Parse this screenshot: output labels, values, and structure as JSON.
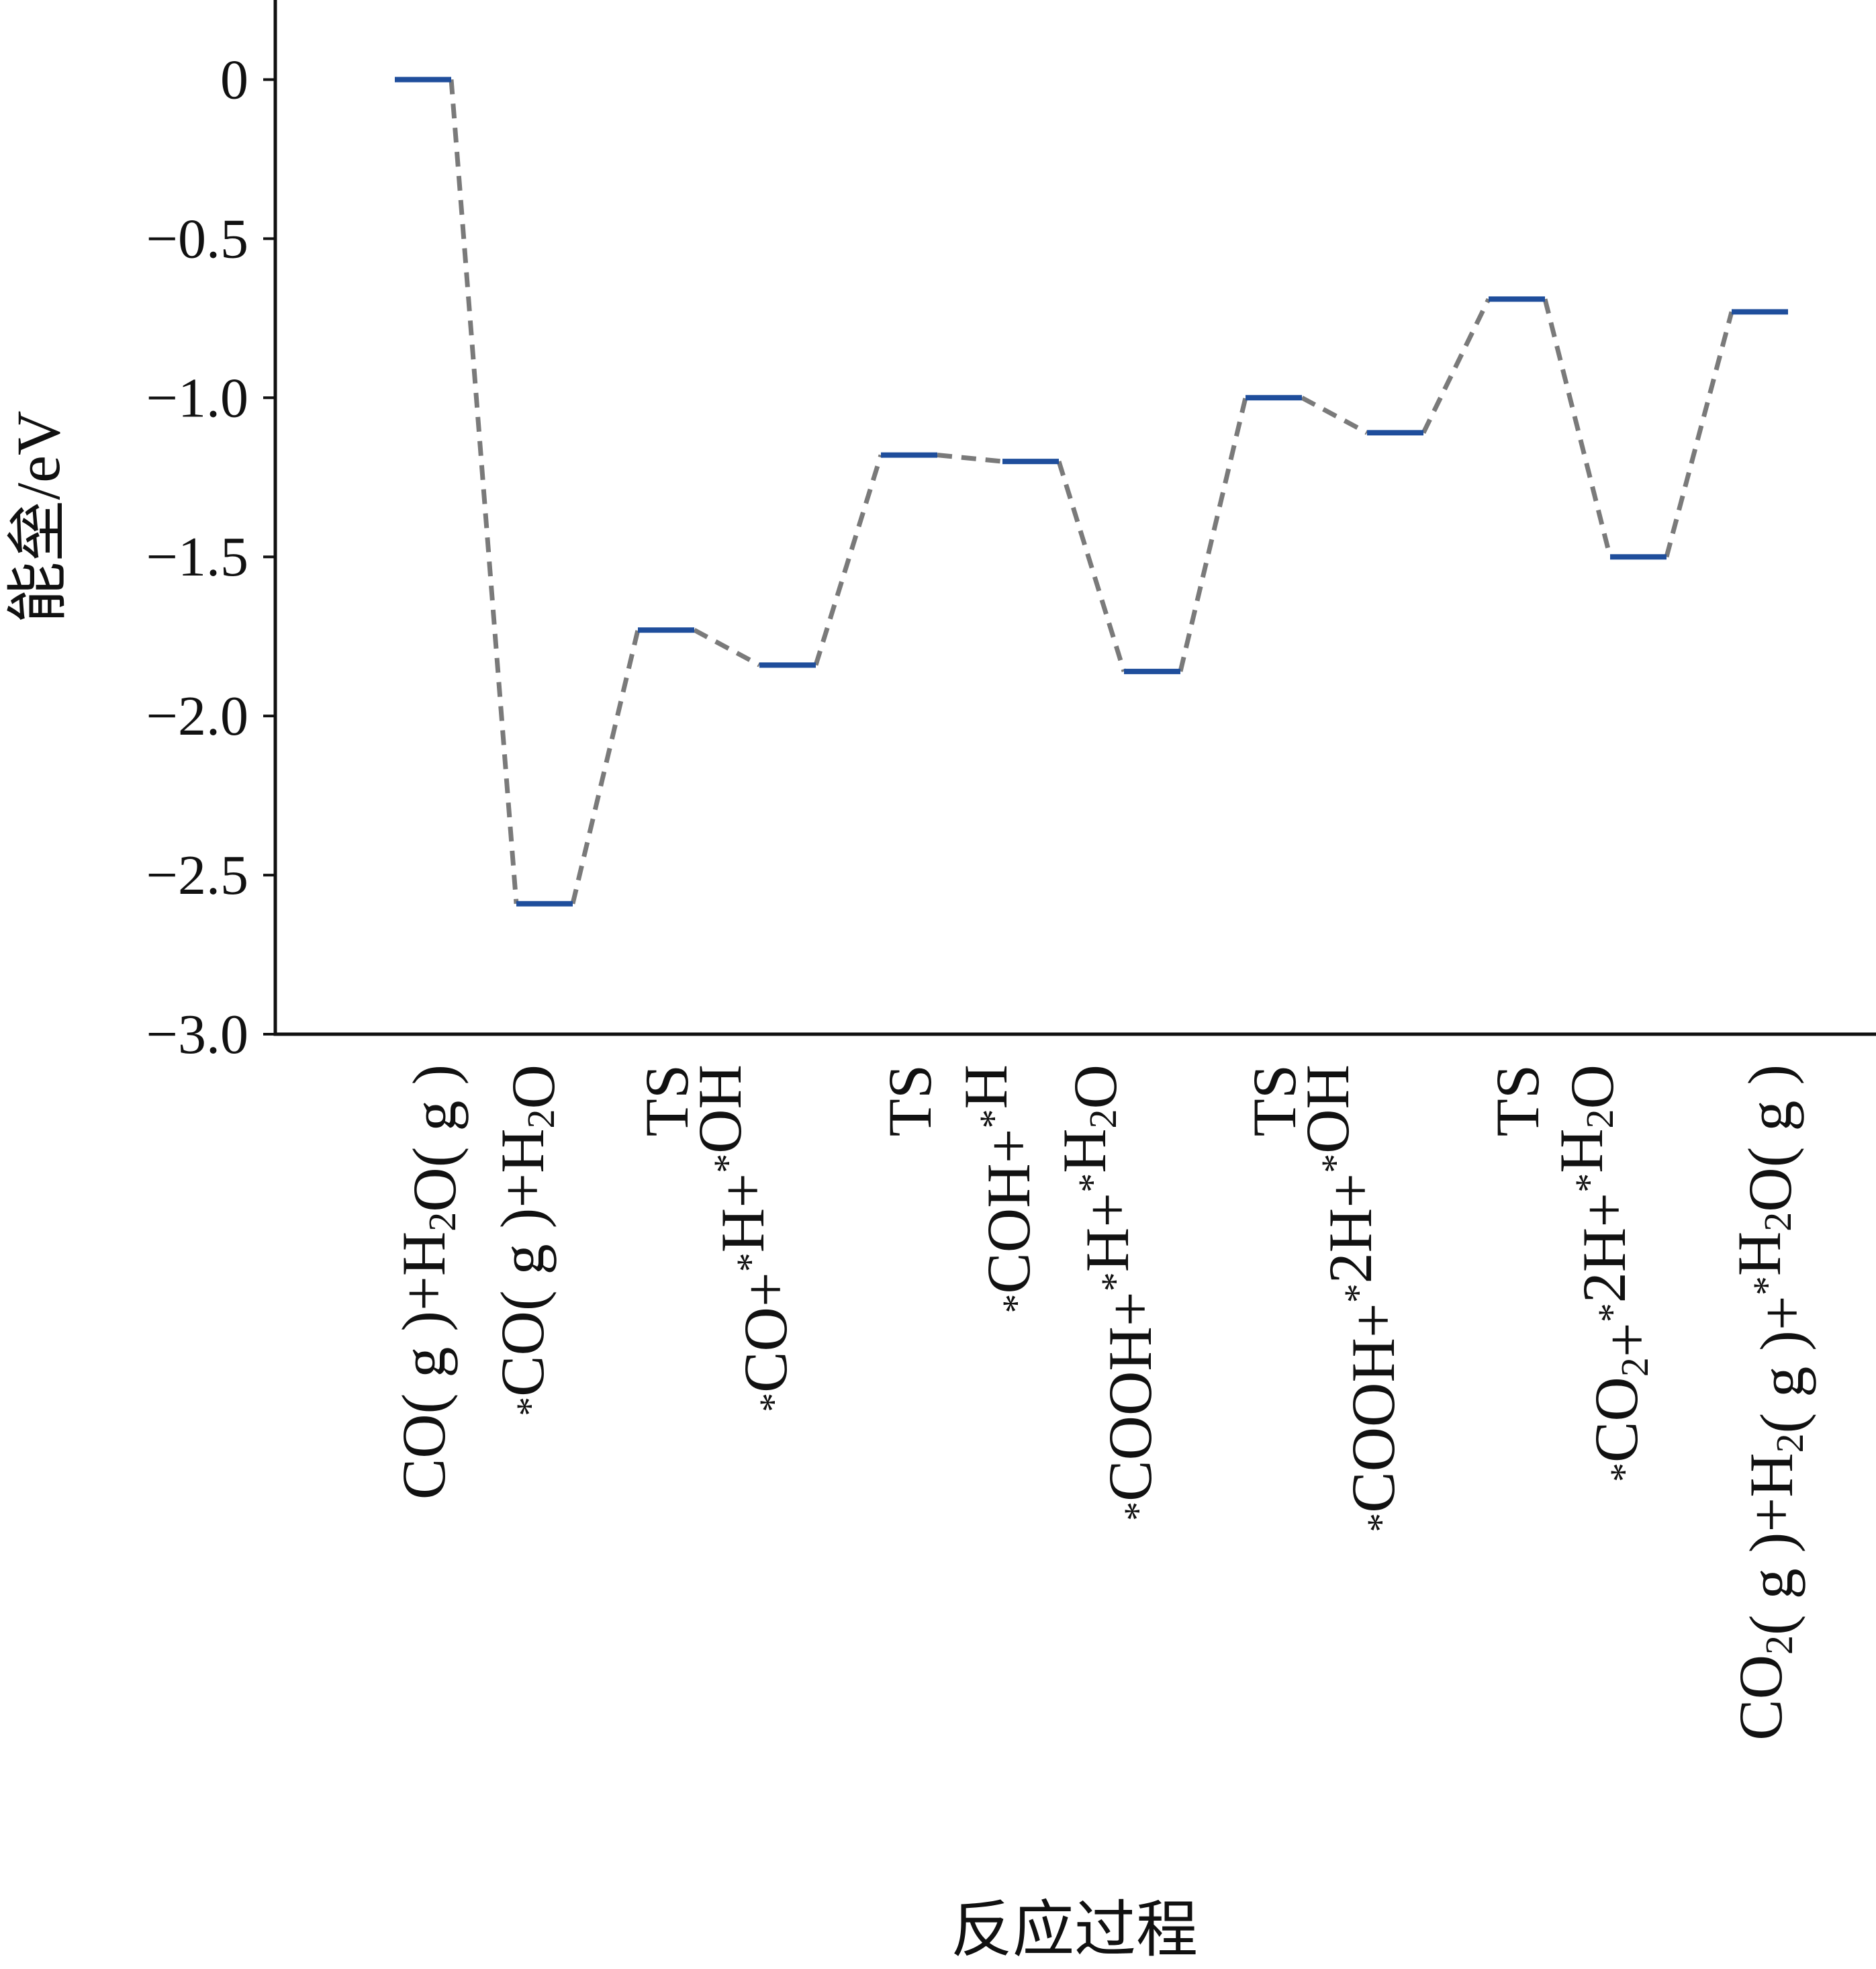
{
  "chart_data": {
    "type": "line",
    "title": "",
    "ylabel": "能垒/eV",
    "xlabel": "反应过程",
    "ylim": [
      -3.0,
      0.25
    ],
    "yticks": [
      0,
      -0.5,
      -1.0,
      -1.5,
      -2.0,
      -2.5,
      -3.0
    ],
    "ytick_labels": [
      "0",
      "−0.5",
      "−1.0",
      "−1.5",
      "−2.0",
      "−2.5",
      "−3.0"
    ],
    "grid": false,
    "legend": "none",
    "colors": {
      "level": "#1f4e9c",
      "connector": "#7a7a7a",
      "axis": "#111111"
    },
    "categories": [
      "CO(g)+H2O(g)",
      "*CO(g)+H2O",
      "TS",
      "*CO+*H+*OH",
      "TS",
      "*COH+*H",
      "*COOH+*H+*H2O",
      "TS",
      "*COOH+*2H+*OH",
      "TS",
      "*CO2+*2H+*H2O",
      "CO2(g)+H2(g)+*H2O(g)"
    ],
    "category_labels": [
      [
        {
          "t": "CO( g )+H"
        },
        {
          "t": "2",
          "s": "sub"
        },
        {
          "t": "O( g )"
        }
      ],
      [
        {
          "t": "*",
          "s": "sup"
        },
        {
          "t": "CO( g )+H"
        },
        {
          "t": "2",
          "s": "sub"
        },
        {
          "t": "O"
        }
      ],
      [
        {
          "t": "TS"
        }
      ],
      [
        {
          "t": "*",
          "s": "sup"
        },
        {
          "t": "CO+"
        },
        {
          "t": "*",
          "s": "sup"
        },
        {
          "t": "H+"
        },
        {
          "t": "*",
          "s": "sup"
        },
        {
          "t": "OH"
        }
      ],
      [
        {
          "t": "TS"
        }
      ],
      [
        {
          "t": "*",
          "s": "sup"
        },
        {
          "t": "COH+"
        },
        {
          "t": "*",
          "s": "sup"
        },
        {
          "t": "H"
        }
      ],
      [
        {
          "t": "*",
          "s": "sup"
        },
        {
          "t": "COOH+"
        },
        {
          "t": "*",
          "s": "sup"
        },
        {
          "t": "H+"
        },
        {
          "t": "*",
          "s": "sup"
        },
        {
          "t": "H"
        },
        {
          "t": "2",
          "s": "sub"
        },
        {
          "t": "O"
        }
      ],
      [
        {
          "t": "TS"
        }
      ],
      [
        {
          "t": "*",
          "s": "sup"
        },
        {
          "t": "COOH+"
        },
        {
          "t": "*",
          "s": "sup"
        },
        {
          "t": "2H+"
        },
        {
          "t": "*",
          "s": "sup"
        },
        {
          "t": "OH"
        }
      ],
      [
        {
          "t": "TS"
        }
      ],
      [
        {
          "t": "*",
          "s": "sup"
        },
        {
          "t": "CO"
        },
        {
          "t": "2",
          "s": "sub"
        },
        {
          "t": "+"
        },
        {
          "t": "*",
          "s": "sup"
        },
        {
          "t": "2H+"
        },
        {
          "t": "*",
          "s": "sup"
        },
        {
          "t": "H"
        },
        {
          "t": "2",
          "s": "sub"
        },
        {
          "t": "O"
        }
      ],
      [
        {
          "t": "CO"
        },
        {
          "t": "2",
          "s": "sub"
        },
        {
          "t": "( g )+H"
        },
        {
          "t": "2",
          "s": "sub"
        },
        {
          "t": "( g )+"
        },
        {
          "t": "*",
          "s": "sup"
        },
        {
          "t": "H"
        },
        {
          "t": "2",
          "s": "sub"
        },
        {
          "t": "O( g )"
        }
      ]
    ],
    "values": [
      0.0,
      -2.59,
      -1.73,
      -1.84,
      -1.18,
      -1.2,
      -1.86,
      -1.0,
      -1.11,
      -0.69,
      -1.5,
      -0.73
    ]
  }
}
